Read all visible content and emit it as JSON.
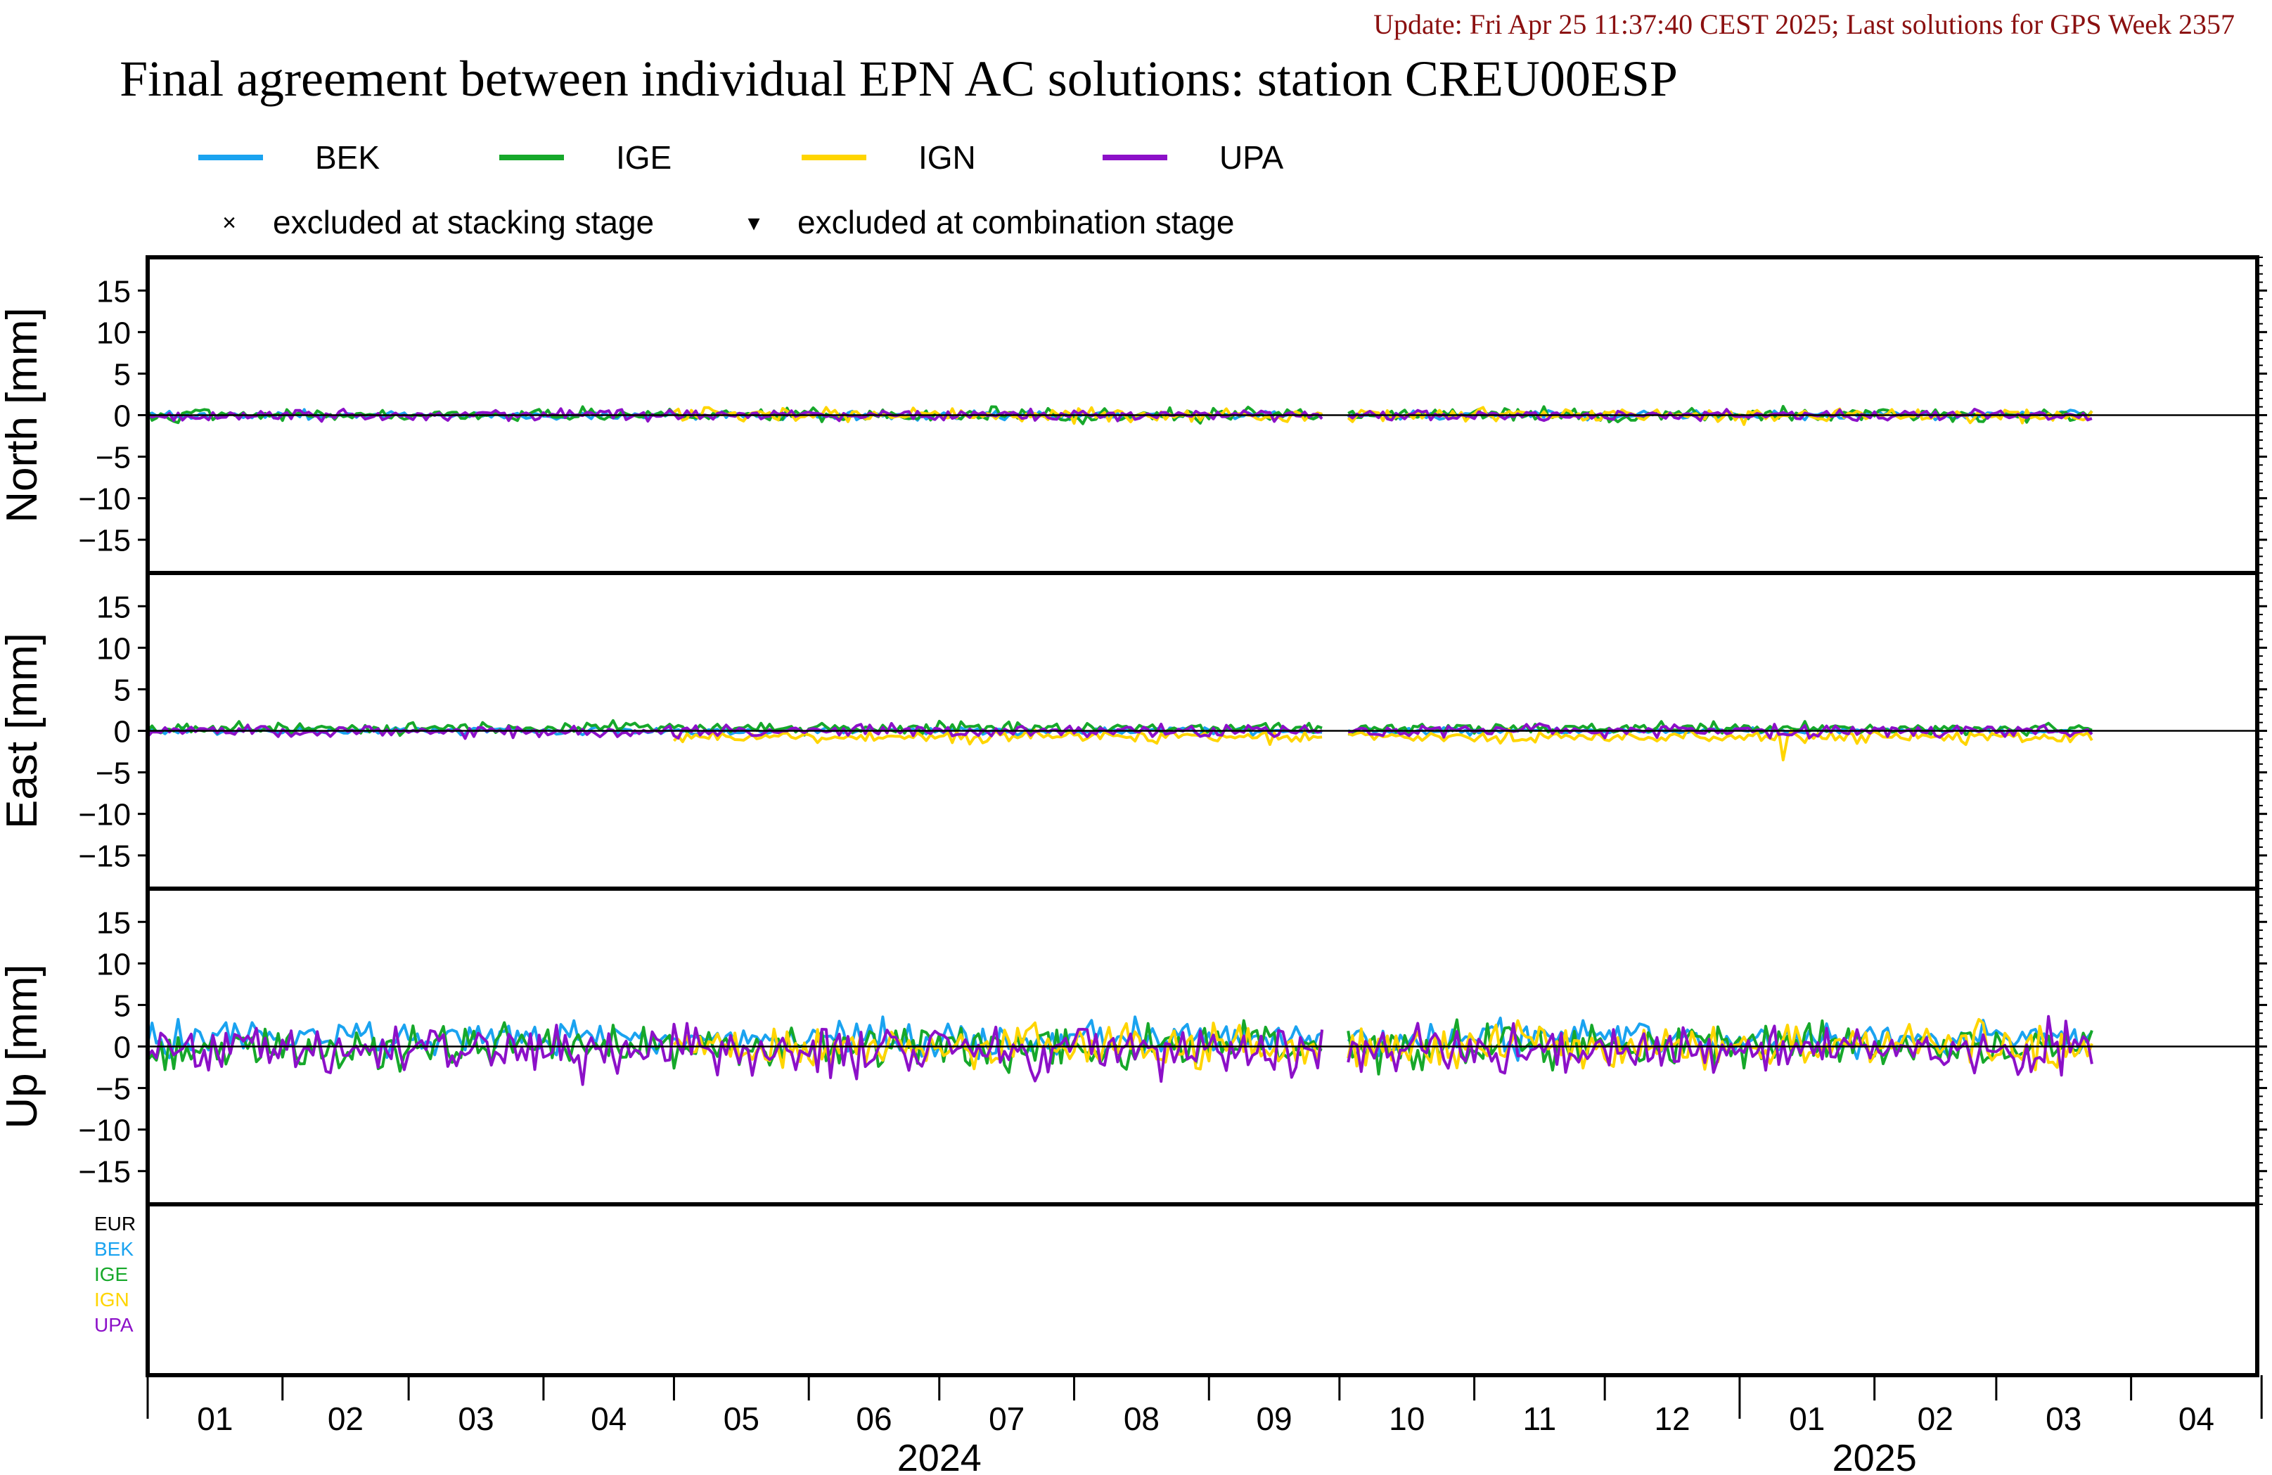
{
  "header": {
    "update": "Update: Fri Apr 25 11:37:40 CEST 2025; Last solutions for GPS Week 2357",
    "title": "Final agreement between individual EPN AC solutions: station CREU00ESP"
  },
  "legend": {
    "items": [
      {
        "label": "BEK",
        "color": "#1aa3f0"
      },
      {
        "label": "IGE",
        "color": "#16a82a"
      },
      {
        "label": "IGN",
        "color": "#ffd500"
      },
      {
        "label": "UPA",
        "color": "#8c10c8"
      }
    ],
    "markers": [
      {
        "symbol": "×",
        "label": "excluded at stacking stage"
      },
      {
        "symbol": "▾",
        "label": "excluded at combination stage"
      }
    ]
  },
  "side_labels": [
    {
      "label": "EUR",
      "color": "#000000"
    },
    {
      "label": "BEK",
      "color": "#1aa3f0"
    },
    {
      "label": "IGE",
      "color": "#16a82a"
    },
    {
      "label": "IGN",
      "color": "#ffd500"
    },
    {
      "label": "UPA",
      "color": "#8c10c8"
    }
  ],
  "chart_data": {
    "type": "line",
    "x_axis": {
      "unit": "months",
      "start": "2024-01-01",
      "end": "2025-04-30",
      "month_labels": [
        "01",
        "02",
        "03",
        "04",
        "05",
        "06",
        "07",
        "08",
        "09",
        "10",
        "11",
        "12",
        "01",
        "02",
        "03",
        "04"
      ],
      "year_labels": [
        {
          "label": "2024",
          "month_index": 6
        },
        {
          "label": "2025",
          "month_index": 13
        }
      ],
      "data_end": "2025-03-23",
      "data_gap": [
        "2024-09-28",
        "2024-10-02"
      ]
    },
    "panels": [
      {
        "name": "north",
        "ylabel": "North [mm]",
        "ylim": [
          -19,
          19
        ],
        "yticks": [
          15,
          10,
          5,
          0,
          -5,
          -10,
          -15
        ],
        "series": [
          {
            "name": "BEK",
            "amplitude": 0.25,
            "start": "2024-01-01"
          },
          {
            "name": "IGE",
            "amplitude": 0.4,
            "start": "2024-01-01"
          },
          {
            "name": "IGN",
            "amplitude": 0.4,
            "start": "2024-05-01"
          },
          {
            "name": "UPA",
            "amplitude": 0.3,
            "start": "2024-01-01"
          }
        ]
      },
      {
        "name": "east",
        "ylabel": "East [mm]",
        "ylim": [
          -19,
          19
        ],
        "yticks": [
          15,
          10,
          5,
          0,
          -5,
          -10,
          -15
        ],
        "series": [
          {
            "name": "BEK",
            "amplitude": 0.2,
            "start": "2024-01-01"
          },
          {
            "name": "IGE",
            "amplitude": 0.35,
            "start": "2024-01-01",
            "mean": 0.3
          },
          {
            "name": "IGN",
            "amplitude": 0.35,
            "start": "2024-05-01",
            "mean": -0.7,
            "spike": {
              "date": "2025-01-11",
              "value": -3.5
            }
          },
          {
            "name": "UPA",
            "amplitude": 0.35,
            "start": "2024-01-01"
          }
        ]
      },
      {
        "name": "up",
        "ylabel": "Up [mm]",
        "ylim": [
          -19,
          19
        ],
        "yticks": [
          15,
          10,
          5,
          0,
          -5,
          -10,
          -15
        ],
        "series": [
          {
            "name": "BEK",
            "amplitude": 1.0,
            "start": "2024-01-01",
            "mean": 1.0
          },
          {
            "name": "IGE",
            "amplitude": 1.3,
            "start": "2024-01-01"
          },
          {
            "name": "IGN",
            "amplitude": 1.4,
            "start": "2024-05-01"
          },
          {
            "name": "UPA",
            "amplitude": 1.5,
            "start": "2024-01-01",
            "mean": -0.5
          }
        ]
      }
    ]
  }
}
